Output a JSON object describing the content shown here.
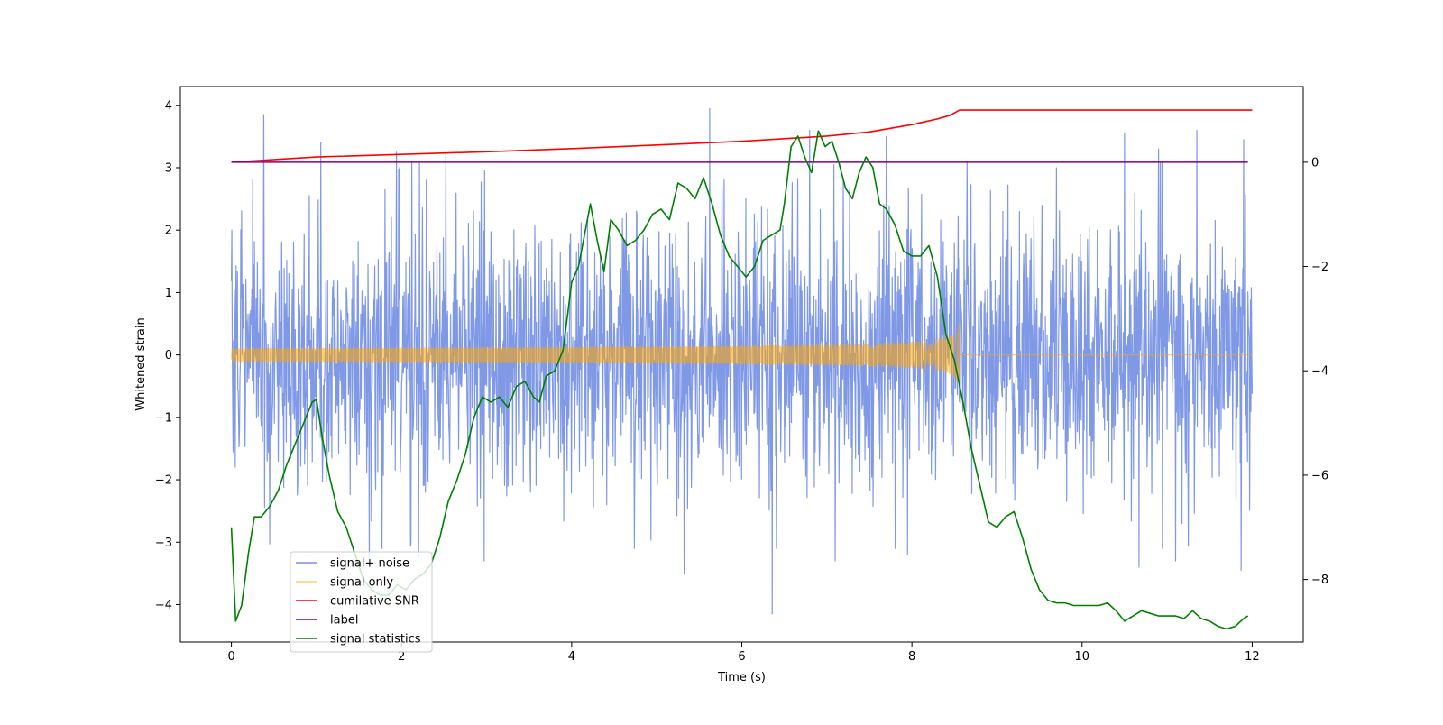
{
  "chart_data": {
    "type": "line",
    "title": "",
    "xlabel": "Time (s)",
    "ylabel": "Whitened strain",
    "xlim": [
      -0.6,
      12.6
    ],
    "ylim": [
      -4.6,
      4.3
    ],
    "y2lim": [
      -9.2,
      1.45
    ],
    "x_ticks": [
      0,
      2,
      4,
      6,
      8,
      10,
      12
    ],
    "x_tick_labels": [
      "0",
      "2",
      "4",
      "6",
      "8",
      "10",
      "12"
    ],
    "y_ticks": [
      4,
      3,
      2,
      1,
      0,
      -1,
      -2,
      -3,
      -4
    ],
    "y_tick_labels": [
      "4",
      "3",
      "2",
      "1",
      "0",
      "−1",
      "−2",
      "−3",
      "−4"
    ],
    "y2_ticks": [
      0,
      -2,
      -4,
      -6,
      -8
    ],
    "y2_tick_labels": [
      "0",
      "−2",
      "−4",
      "−6",
      "−8"
    ],
    "grid": false,
    "legend_position": "lower-left",
    "series": [
      {
        "name": "signal+ noise",
        "color": "#7993e6",
        "axis": "left",
        "kind": "noise",
        "x_range": [
          0,
          12
        ],
        "sample_count": 2400,
        "core_sigma": 1.05,
        "peaks": [
          [
            0.38,
            3.85
          ],
          [
            1.05,
            3.4
          ],
          [
            1.94,
            3.25
          ],
          [
            2.52,
            3.2
          ],
          [
            5.62,
            3.95
          ],
          [
            6.8,
            3.6
          ],
          [
            7.7,
            3.5
          ],
          [
            10.5,
            3.55
          ],
          [
            10.9,
            3.3
          ],
          [
            11.35,
            3.6
          ],
          [
            11.9,
            3.45
          ]
        ],
        "troughs": [
          [
            1.62,
            -3.4
          ],
          [
            2.2,
            -3.25
          ],
          [
            2.97,
            -3.3
          ],
          [
            5.32,
            -3.5
          ],
          [
            6.36,
            -4.15
          ],
          [
            7.1,
            -3.3
          ],
          [
            7.95,
            -3.2
          ],
          [
            10.67,
            -3.4
          ],
          [
            11.1,
            -3.3
          ],
          [
            11.87,
            -3.45
          ]
        ]
      },
      {
        "name": "signal only",
        "color": "#ffa500",
        "axis": "left",
        "kind": "chirp",
        "x_range": [
          0,
          12
        ],
        "merger_time": 8.56,
        "peak_amplitude": 0.55
      },
      {
        "name": "cumilative SNR",
        "color": "#ff0000",
        "axis": "right",
        "x": [
          0,
          1,
          2,
          3,
          4,
          5,
          6,
          7,
          7.5,
          8,
          8.3,
          8.45,
          8.56,
          9,
          10,
          11,
          12
        ],
        "values": [
          0,
          0.1,
          0.15,
          0.2,
          0.26,
          0.33,
          0.4,
          0.5,
          0.58,
          0.72,
          0.83,
          0.9,
          1.0,
          1.0,
          1.0,
          1.0,
          1.0
        ]
      },
      {
        "name": "label",
        "color": "#800080",
        "axis": "right",
        "x": [
          0,
          11.95
        ],
        "values": [
          0,
          0
        ]
      },
      {
        "name": "signal statistics",
        "color": "#008000",
        "axis": "right",
        "x": [
          0,
          0.05,
          0.12,
          0.2,
          0.27,
          0.35,
          0.45,
          0.55,
          0.65,
          0.75,
          0.85,
          0.95,
          1.0,
          1.07,
          1.15,
          1.25,
          1.35,
          1.45,
          1.55,
          1.65,
          1.75,
          1.85,
          1.95,
          2.05,
          2.15,
          2.25,
          2.35,
          2.45,
          2.55,
          2.65,
          2.75,
          2.85,
          2.95,
          3.05,
          3.15,
          3.25,
          3.35,
          3.45,
          3.55,
          3.62,
          3.7,
          3.8,
          3.9,
          4.0,
          4.08,
          4.15,
          4.22,
          4.3,
          4.38,
          4.46,
          4.55,
          4.65,
          4.75,
          4.85,
          4.95,
          5.05,
          5.15,
          5.25,
          5.35,
          5.45,
          5.55,
          5.65,
          5.75,
          5.85,
          5.95,
          6.05,
          6.15,
          6.25,
          6.35,
          6.45,
          6.5,
          6.58,
          6.66,
          6.74,
          6.82,
          6.9,
          6.98,
          7.06,
          7.14,
          7.22,
          7.3,
          7.38,
          7.46,
          7.54,
          7.62,
          7.7,
          7.8,
          7.9,
          8.0,
          8.1,
          8.2,
          8.3,
          8.4,
          8.5,
          8.6,
          8.7,
          8.8,
          8.9,
          9.0,
          9.1,
          9.2,
          9.3,
          9.4,
          9.5,
          9.6,
          9.7,
          9.8,
          9.9,
          10.0,
          10.1,
          10.2,
          10.3,
          10.4,
          10.5,
          10.6,
          10.7,
          10.8,
          10.9,
          11.0,
          11.1,
          11.2,
          11.3,
          11.4,
          11.5,
          11.6,
          11.7,
          11.8,
          11.9,
          11.95
        ],
        "values": [
          -7.0,
          -8.8,
          -8.5,
          -7.5,
          -6.8,
          -6.8,
          -6.6,
          -6.3,
          -5.8,
          -5.4,
          -5.0,
          -4.6,
          -4.55,
          -5.3,
          -6.0,
          -6.7,
          -7.0,
          -7.5,
          -8.0,
          -8.2,
          -8.3,
          -8.3,
          -8.1,
          -8.2,
          -8.0,
          -7.9,
          -7.7,
          -7.2,
          -6.5,
          -6.1,
          -5.6,
          -4.9,
          -4.5,
          -4.6,
          -4.5,
          -4.7,
          -4.3,
          -4.2,
          -4.5,
          -4.6,
          -4.1,
          -4.0,
          -3.6,
          -2.3,
          -2.0,
          -1.4,
          -0.8,
          -1.5,
          -2.1,
          -1.1,
          -1.3,
          -1.6,
          -1.5,
          -1.3,
          -1.0,
          -0.9,
          -1.1,
          -0.4,
          -0.5,
          -0.7,
          -0.3,
          -0.8,
          -1.4,
          -1.8,
          -2.0,
          -2.2,
          -2.0,
          -1.5,
          -1.4,
          -1.3,
          -0.8,
          0.3,
          0.5,
          0.1,
          -0.2,
          0.6,
          0.3,
          0.4,
          0.0,
          -0.5,
          -0.7,
          -0.2,
          0.1,
          -0.1,
          -0.8,
          -0.9,
          -1.2,
          -1.7,
          -1.8,
          -1.8,
          -1.6,
          -2.2,
          -3.3,
          -3.8,
          -4.6,
          -5.5,
          -6.2,
          -6.9,
          -7.0,
          -6.8,
          -6.7,
          -7.2,
          -7.8,
          -8.2,
          -8.4,
          -8.45,
          -8.45,
          -8.5,
          -8.5,
          -8.5,
          -8.5,
          -8.45,
          -8.6,
          -8.8,
          -8.7,
          -8.6,
          -8.65,
          -8.7,
          -8.7,
          -8.7,
          -8.75,
          -8.6,
          -8.75,
          -8.8,
          -8.9,
          -8.95,
          -8.9,
          -8.75,
          -8.7
        ]
      }
    ]
  }
}
